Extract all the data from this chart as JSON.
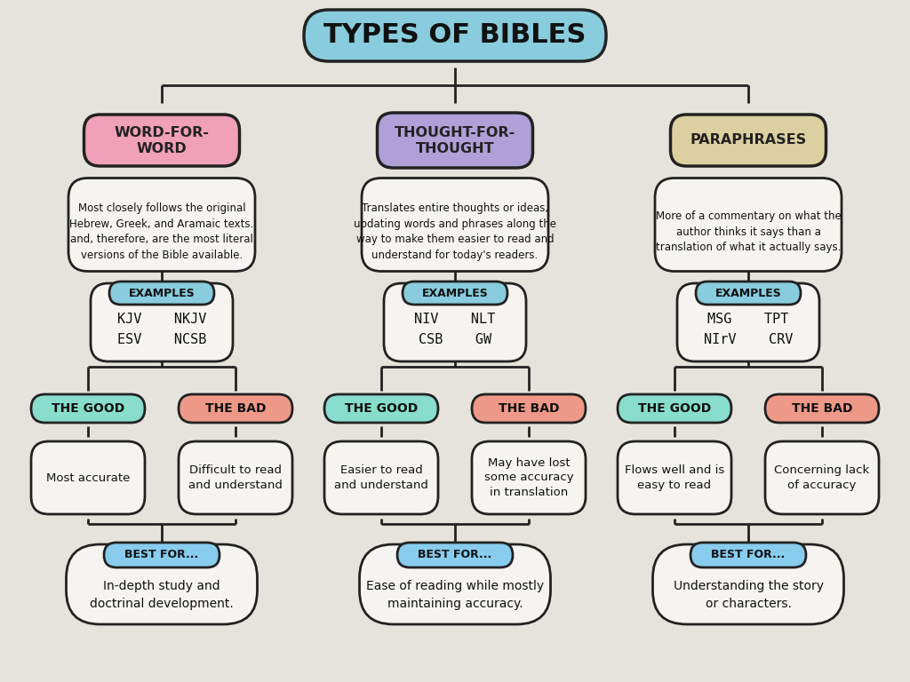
{
  "title": "TYPES OF BIBLES",
  "title_bg": "#88ccdd",
  "title_text_color": "#111111",
  "background_color": "#e5e3dc",
  "columns": [
    {
      "name": "WORD-FOR-\nWORD",
      "name_bg": "#f0a0b8",
      "name_text_color": "#222222",
      "description": "Most closely follows the original\nHebrew, Greek, and Aramaic texts.\nand, therefore, are the most literal\nversions of the Bible available.",
      "ex1": "KJV    NKJV",
      "ex2": "ESV    NCSB",
      "good": "Most accurate",
      "bad": "Difficult to read\nand understand",
      "best_for": "In-depth study and\ndoctrinal development."
    },
    {
      "name": "THOUGHT-FOR-\nTHOUGHT",
      "name_bg": "#b0a0d8",
      "name_text_color": "#222222",
      "description": "Translates entire thoughts or ideas,\nupdating words and phrases along the\nway to make them easier to read and\nunderstand for today's readers.",
      "ex1": "NIV    NLT",
      "ex2": "CSB    GW",
      "good": "Easier to read\nand understand",
      "bad": "May have lost\nsome accuracy\nin translation",
      "best_for": "Ease of reading while mostly\nmaintaining accuracy."
    },
    {
      "name": "PARAPHRASES",
      "name_bg": "#ddd0a0",
      "name_text_color": "#222222",
      "description": "More of a commentary on what the\nauthor thinks it says than a\ntranslation of what it actually says.",
      "ex1": "MSG    TPT",
      "ex2": "NIrV    CRV",
      "good": "Flows well and is\neasy to read",
      "bad": "Concerning lack\nof accuracy",
      "best_for": "Understanding the story\nor characters."
    }
  ],
  "examples_bg": "#88ccdd",
  "examples_text": "#111111",
  "good_bg": "#88ddcc",
  "good_text": "#111111",
  "bad_bg": "#ee9988",
  "bad_text": "#111111",
  "best_bg": "#88ccee",
  "best_text": "#111111",
  "box_bg": "#f5f4f0",
  "box_edge": "#222222",
  "line_color": "#222222",
  "line_lw": 2.0
}
